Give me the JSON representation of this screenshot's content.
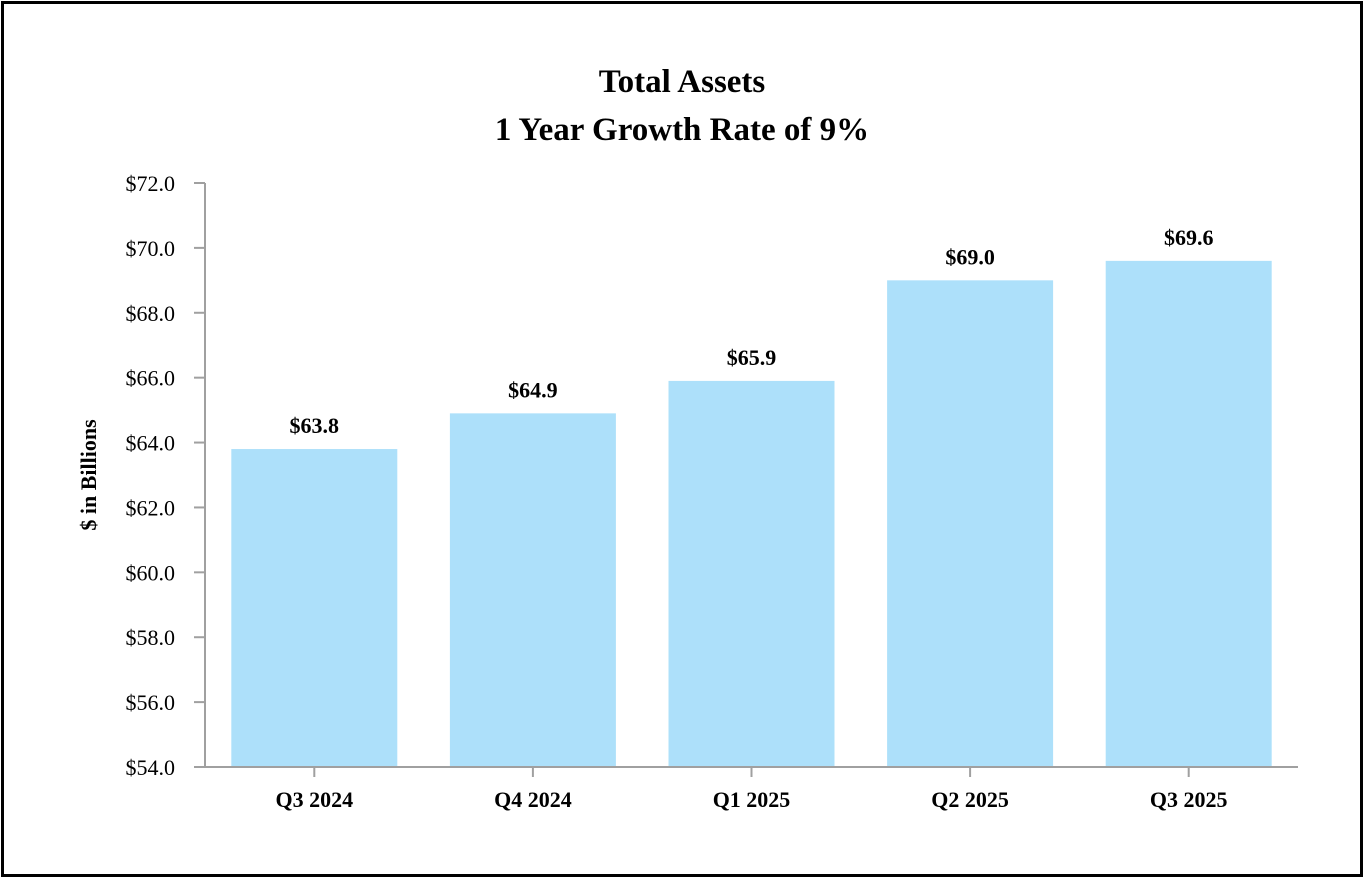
{
  "chart_data": {
    "type": "bar",
    "title": "Total Assets",
    "subtitle": "1 Year Growth Rate of 9%",
    "xlabel": "",
    "ylabel": "$ in Billions",
    "categories": [
      "Q3 2024",
      "Q4 2024",
      "Q1 2025",
      "Q2 2025",
      "Q3 2025"
    ],
    "values": [
      63.8,
      64.9,
      65.9,
      69.0,
      69.6
    ],
    "data_labels": [
      "$63.8",
      "$64.9",
      "$65.9",
      "$69.0",
      "$69.6"
    ],
    "ylim": [
      54,
      72
    ],
    "yticks": [
      54,
      56,
      58,
      60,
      62,
      64,
      66,
      68,
      70,
      72
    ],
    "ytick_labels": [
      "$54.0",
      "$56.0",
      "$58.0",
      "$60.0",
      "$62.0",
      "$64.0",
      "$66.0",
      "$68.0",
      "$70.0",
      "$72.0"
    ],
    "grid": false,
    "legend": "none",
    "bar_color": "#ade0fa",
    "axis_color": "#a0a0a0"
  }
}
